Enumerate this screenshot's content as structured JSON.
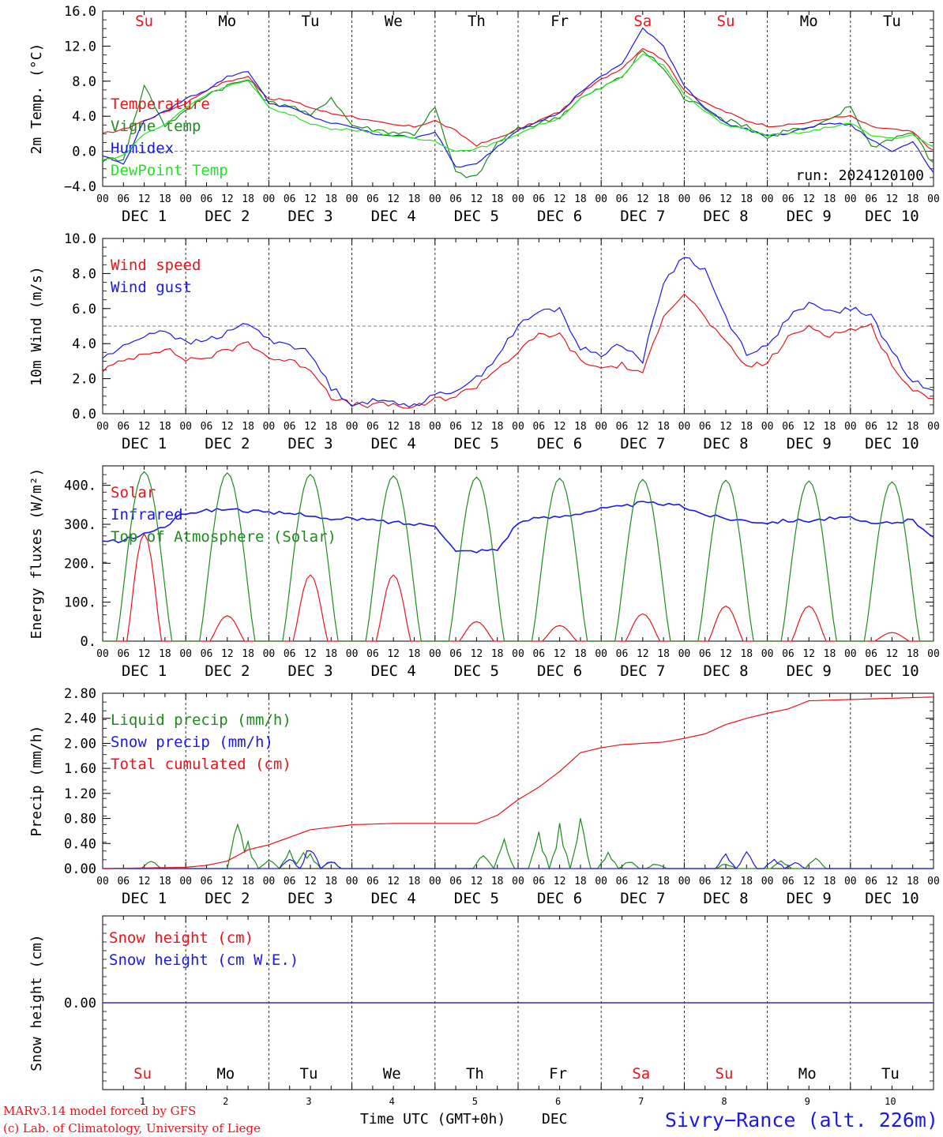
{
  "days": [
    {
      "abbr": "Su",
      "red": true,
      "date": "DEC  1",
      "num": "1"
    },
    {
      "abbr": "Mo",
      "red": false,
      "date": "DEC  2",
      "num": "2"
    },
    {
      "abbr": "Tu",
      "red": false,
      "date": "DEC  3",
      "num": "3"
    },
    {
      "abbr": "We",
      "red": false,
      "date": "DEC  4",
      "num": "4"
    },
    {
      "abbr": "Th",
      "red": false,
      "date": "DEC  5",
      "num": "5"
    },
    {
      "abbr": "Fr",
      "red": false,
      "date": "DEC  6",
      "num": "6"
    },
    {
      "abbr": "Sa",
      "red": true,
      "date": "DEC  7",
      "num": "7"
    },
    {
      "abbr": "Su",
      "red": true,
      "date": "DEC  8",
      "num": "8"
    },
    {
      "abbr": "Mo",
      "red": false,
      "date": "DEC  9",
      "num": "9"
    },
    {
      "abbr": "Tu",
      "red": false,
      "date": "DEC 10",
      "num": "10"
    }
  ],
  "hour_ticks": [
    "00",
    "06",
    "12",
    "18"
  ],
  "colors": {
    "red": "#e8141b",
    "green": "#1f8a1f",
    "blue": "#1a1ae6",
    "lightgreen": "#22e622",
    "ink": "#000000"
  },
  "chart_data": [
    {
      "type": "line",
      "id": "temp",
      "ylabel": "2m Temp. (°C)",
      "ylim": [
        -4.0,
        16.0
      ],
      "yticks": [
        "−4.0",
        "0.0",
        "4.0",
        "8.0",
        "12.0",
        "16.0"
      ],
      "ytick_values": [
        -4,
        0,
        4,
        8,
        12,
        16
      ],
      "reference_line": 0,
      "annotation": "run: 2024120100",
      "x_hours": [
        0,
        6,
        12,
        18,
        24,
        30,
        36,
        42,
        48,
        54,
        60,
        66,
        72,
        78,
        84,
        90,
        96,
        102,
        108,
        114,
        120,
        126,
        132,
        138,
        144,
        150,
        156,
        162,
        168,
        174,
        180,
        186,
        192,
        198,
        204,
        210,
        216,
        222,
        228,
        234,
        240
      ],
      "series": [
        {
          "name": "Temperature",
          "color": "red",
          "values": [
            2.0,
            2.5,
            3.5,
            4.5,
            5.5,
            7.0,
            8.0,
            8.5,
            6.0,
            5.8,
            5.0,
            4.3,
            4.0,
            3.4,
            3.0,
            2.8,
            3.5,
            2.3,
            0.7,
            1.5,
            2.5,
            3.5,
            4.5,
            6.5,
            8.2,
            9.5,
            11.8,
            10.5,
            7.0,
            5.5,
            4.5,
            3.5,
            2.9,
            3.0,
            3.3,
            3.8,
            4.0,
            2.8,
            2.5,
            2.2,
            0.0
          ]
        },
        {
          "name": "Vigne temp",
          "color": "green",
          "values": [
            -1.0,
            -0.8,
            7.5,
            3.0,
            4.5,
            6.5,
            7.5,
            8.2,
            5.5,
            5.3,
            4.0,
            6.2,
            3.0,
            2.5,
            2.2,
            2.0,
            5.0,
            -2.5,
            -3.0,
            1.0,
            2.5,
            3.2,
            4.0,
            6.0,
            7.2,
            8.5,
            11.5,
            9.5,
            6.0,
            5.0,
            3.5,
            3.0,
            1.5,
            2.5,
            2.5,
            3.5,
            5.2,
            0.5,
            1.5,
            2.2,
            -1.5
          ]
        },
        {
          "name": "Humidex",
          "color": "blue",
          "values": [
            -0.5,
            -1.5,
            3.5,
            4.5,
            6.0,
            7.0,
            8.5,
            9.2,
            5.5,
            5.0,
            4.0,
            3.2,
            2.8,
            2.0,
            1.8,
            1.6,
            2.2,
            -1.8,
            -1.5,
            0.5,
            2.5,
            3.5,
            4.3,
            6.8,
            8.5,
            10.0,
            14.0,
            12.0,
            7.5,
            5.0,
            3.2,
            2.5,
            1.8,
            2.0,
            2.8,
            3.2,
            3.0,
            1.3,
            0.0,
            1.2,
            -2.5
          ]
        },
        {
          "name": "DewPoint Temp",
          "color": "lightgreen",
          "values": [
            -1.0,
            -0.5,
            2.0,
            3.0,
            5.0,
            6.5,
            7.5,
            8.0,
            5.0,
            4.2,
            3.2,
            2.5,
            2.5,
            2.2,
            1.8,
            1.4,
            1.2,
            0.0,
            0.3,
            1.0,
            2.0,
            3.0,
            3.8,
            6.0,
            7.2,
            8.5,
            11.2,
            9.8,
            6.5,
            4.5,
            3.0,
            2.5,
            1.8,
            2.0,
            2.2,
            2.8,
            3.2,
            1.8,
            1.5,
            1.8,
            0.5
          ]
        }
      ]
    },
    {
      "type": "line",
      "id": "wind",
      "ylabel": "10m Wind (m/s)",
      "ylim": [
        0.0,
        10.0
      ],
      "yticks": [
        "0.0",
        "2.0",
        "4.0",
        "6.0",
        "8.0",
        "10.0"
      ],
      "ytick_values": [
        0,
        2,
        4,
        6,
        8,
        10
      ],
      "reference_line": 5,
      "x_hours": [
        0,
        6,
        12,
        18,
        24,
        30,
        36,
        42,
        48,
        54,
        60,
        66,
        72,
        78,
        84,
        90,
        96,
        102,
        108,
        114,
        120,
        126,
        132,
        138,
        144,
        150,
        156,
        162,
        168,
        174,
        180,
        186,
        192,
        198,
        204,
        210,
        216,
        222,
        228,
        234,
        240
      ],
      "series": [
        {
          "name": "Wind speed",
          "color": "red",
          "values": [
            2.5,
            3.0,
            3.5,
            3.7,
            3.1,
            3.2,
            3.6,
            4.1,
            3.2,
            3.0,
            2.6,
            1.0,
            0.5,
            0.5,
            0.5,
            0.3,
            0.8,
            1.0,
            1.6,
            2.6,
            3.5,
            4.5,
            4.5,
            3.0,
            2.6,
            2.8,
            2.2,
            5.7,
            6.9,
            5.5,
            4.0,
            2.7,
            2.9,
            4.3,
            5.0,
            4.5,
            4.8,
            5.0,
            2.8,
            1.2,
            1.0
          ]
        },
        {
          "name": "Wind gust",
          "color": "blue",
          "values": [
            3.2,
            3.8,
            4.5,
            4.8,
            4.0,
            4.2,
            4.6,
            5.2,
            4.2,
            4.0,
            3.4,
            1.5,
            0.6,
            0.7,
            0.7,
            0.5,
            1.0,
            1.4,
            2.0,
            3.3,
            5.0,
            5.8,
            6.0,
            3.7,
            3.4,
            4.0,
            3.0,
            7.5,
            9.0,
            8.2,
            5.5,
            3.5,
            3.8,
            5.5,
            6.2,
            5.8,
            6.0,
            5.6,
            3.5,
            1.8,
            1.5
          ]
        }
      ]
    },
    {
      "type": "line",
      "id": "flux",
      "ylabel": "Energy fluxes (W/m²)",
      "ylim": [
        0,
        450
      ],
      "yticks": [
        "0.",
        "100.",
        "200.",
        "300.",
        "400."
      ],
      "ytick_values": [
        0,
        100,
        200,
        300,
        400
      ],
      "series": [
        {
          "name": "Solar",
          "color": "red",
          "day_peaks": [
            275,
            65,
            170,
            170,
            50,
            40,
            70,
            90,
            90,
            22
          ]
        },
        {
          "name": "Infrared",
          "color": "blue",
          "x_hours": [
            0,
            6,
            12,
            18,
            24,
            30,
            36,
            42,
            48,
            54,
            60,
            66,
            72,
            78,
            84,
            90,
            96,
            102,
            108,
            114,
            120,
            126,
            132,
            138,
            144,
            150,
            156,
            162,
            168,
            174,
            180,
            186,
            192,
            198,
            204,
            210,
            216,
            222,
            228,
            234,
            240
          ],
          "values": [
            255,
            258,
            275,
            295,
            330,
            335,
            340,
            335,
            328,
            328,
            325,
            310,
            315,
            310,
            305,
            300,
            300,
            230,
            232,
            235,
            305,
            315,
            320,
            330,
            340,
            345,
            355,
            352,
            345,
            325,
            315,
            310,
            305,
            310,
            310,
            315,
            315,
            300,
            305,
            310,
            270
          ]
        },
        {
          "name": "Top of Atmosphere (Solar)",
          "color": "green",
          "day_peaks": [
            435,
            432,
            428,
            424,
            421,
            418,
            415,
            413,
            411,
            409
          ]
        }
      ]
    },
    {
      "type": "line",
      "id": "precip",
      "ylabel": "Precip (mm/h)",
      "ylim": [
        0.0,
        2.8
      ],
      "yticks": [
        "0.00",
        "0.40",
        "0.80",
        "1.20",
        "1.60",
        "2.00",
        "2.40",
        "2.80"
      ],
      "ytick_values": [
        0,
        0.4,
        0.8,
        1.2,
        1.6,
        2.0,
        2.4,
        2.8
      ],
      "series": [
        {
          "name": "Liquid precip (mm/h)",
          "color": "green",
          "bursts": [
            [
              14,
              0.15
            ],
            [
              39,
              0.95
            ],
            [
              42,
              0.45
            ],
            [
              48,
              0.2
            ],
            [
              54,
              0.3
            ],
            [
              58,
              0.35
            ],
            [
              60,
              0.25
            ],
            [
              66,
              0.15
            ],
            [
              110,
              0.3
            ],
            [
              116,
              0.55
            ],
            [
              126,
              0.7
            ],
            [
              132,
              0.8
            ],
            [
              138,
              0.85
            ],
            [
              146,
              0.3
            ],
            [
              152,
              0.15
            ],
            [
              160,
              0.1
            ],
            [
              180,
              0.1
            ],
            [
              196,
              0.15
            ],
            [
              206,
              0.25
            ]
          ]
        },
        {
          "name": "Snow precip (mm/h)",
          "color": "blue",
          "bursts": [
            [
              54,
              0.2
            ],
            [
              60,
              0.45
            ],
            [
              66,
              0.15
            ],
            [
              180,
              0.3
            ],
            [
              186,
              0.3
            ],
            [
              194,
              0.2
            ],
            [
              200,
              0.15
            ]
          ]
        },
        {
          "name": "Total cumulated (cm)",
          "color": "red",
          "x_hours": [
            0,
            24,
            30,
            36,
            42,
            48,
            54,
            60,
            66,
            72,
            84,
            96,
            108,
            114,
            120,
            126,
            132,
            138,
            144,
            150,
            156,
            162,
            168,
            174,
            180,
            186,
            192,
            198,
            204,
            216,
            228,
            240
          ],
          "values": [
            0.0,
            0.02,
            0.05,
            0.12,
            0.3,
            0.38,
            0.5,
            0.62,
            0.66,
            0.7,
            0.72,
            0.72,
            0.72,
            0.85,
            1.1,
            1.3,
            1.55,
            1.85,
            1.93,
            1.98,
            2.0,
            2.02,
            2.08,
            2.15,
            2.3,
            2.4,
            2.48,
            2.55,
            2.68,
            2.7,
            2.72,
            2.74
          ]
        }
      ]
    },
    {
      "type": "line",
      "id": "snow",
      "ylabel": "Snow height (cm)",
      "ylim": [
        -1,
        1
      ],
      "yticks": [
        "0.00"
      ],
      "ytick_values": [
        0
      ],
      "series": [
        {
          "name": "Snow height (cm)",
          "color": "red",
          "x_hours": [
            0,
            240
          ],
          "values": [
            0,
            0
          ]
        },
        {
          "name": "Snow height (cm W.E.)",
          "color": "blue",
          "x_hours": [
            0,
            240
          ],
          "values": [
            0,
            0
          ]
        }
      ]
    }
  ],
  "footer": {
    "model": "MARv3.14 model forced by GFS",
    "credit": "(c) Lab. of Climatology, University of Liege",
    "xlabel": "Time UTC (GMT+0h)",
    "month": "DEC",
    "station": "Sivry−Rance (alt. 226m)"
  }
}
